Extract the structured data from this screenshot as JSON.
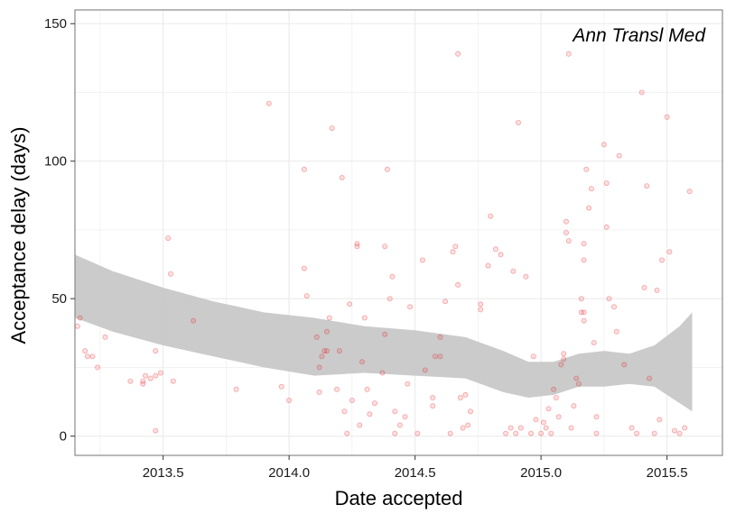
{
  "chart_data": {
    "type": "scatter",
    "annotation": "Ann Transl Med",
    "xlabel": "Date accepted",
    "ylabel": "Acceptance delay (days)",
    "xlim": [
      2013.15,
      2015.72
    ],
    "ylim": [
      -7,
      155
    ],
    "x_ticks": [
      2013.5,
      2014.0,
      2014.5,
      2015.0,
      2015.5
    ],
    "x_tick_labels": [
      "2013.5",
      "2014.0",
      "2014.5",
      "2015.0",
      "2015.5"
    ],
    "y_ticks": [
      0,
      50,
      100,
      150
    ],
    "y_tick_labels": [
      "0",
      "50",
      "100",
      "150"
    ],
    "grid": true,
    "colors": {
      "point": "#e8131a",
      "band": "#c8c8c8",
      "grid": "#ebebeb",
      "border": "#8a8a8a"
    },
    "confidence_band": {
      "x": [
        2013.15,
        2013.3,
        2013.5,
        2013.7,
        2013.9,
        2014.1,
        2014.3,
        2014.5,
        2014.7,
        2014.85,
        2014.95,
        2015.05,
        2015.15,
        2015.25,
        2015.35,
        2015.45,
        2015.55,
        2015.6
      ],
      "upper": [
        66,
        60,
        54,
        49,
        45,
        43,
        40,
        38.5,
        36,
        31,
        27,
        27,
        30,
        31,
        30,
        33,
        40,
        45
      ],
      "lower": [
        43,
        38,
        33,
        29,
        25,
        22,
        23,
        22,
        21,
        16,
        14,
        15,
        18,
        18,
        19,
        18,
        12,
        9
      ]
    },
    "points": [
      [
        2013.16,
        40
      ],
      [
        2013.17,
        43
      ],
      [
        2013.19,
        31
      ],
      [
        2013.2,
        29
      ],
      [
        2013.22,
        29
      ],
      [
        2013.24,
        25
      ],
      [
        2013.27,
        36
      ],
      [
        2013.37,
        20
      ],
      [
        2013.42,
        20
      ],
      [
        2013.42,
        19
      ],
      [
        2013.43,
        22
      ],
      [
        2013.45,
        21
      ],
      [
        2013.47,
        22
      ],
      [
        2013.47,
        31
      ],
      [
        2013.47,
        2
      ],
      [
        2013.49,
        23
      ],
      [
        2013.52,
        72
      ],
      [
        2013.53,
        59
      ],
      [
        2013.54,
        20
      ],
      [
        2013.62,
        42
      ],
      [
        2013.79,
        17
      ],
      [
        2013.92,
        121
      ],
      [
        2013.97,
        18
      ],
      [
        2014.0,
        13
      ],
      [
        2014.06,
        97
      ],
      [
        2014.06,
        61
      ],
      [
        2014.07,
        51
      ],
      [
        2014.11,
        36
      ],
      [
        2014.12,
        25
      ],
      [
        2014.12,
        16
      ],
      [
        2014.13,
        29
      ],
      [
        2014.14,
        31
      ],
      [
        2014.15,
        31
      ],
      [
        2014.15,
        38
      ],
      [
        2014.16,
        43
      ],
      [
        2014.17,
        112
      ],
      [
        2014.19,
        17
      ],
      [
        2014.2,
        31
      ],
      [
        2014.21,
        94
      ],
      [
        2014.22,
        9
      ],
      [
        2014.23,
        1
      ],
      [
        2014.24,
        48
      ],
      [
        2014.25,
        13
      ],
      [
        2014.27,
        70
      ],
      [
        2014.27,
        69
      ],
      [
        2014.28,
        4
      ],
      [
        2014.29,
        27
      ],
      [
        2014.3,
        43
      ],
      [
        2014.31,
        17
      ],
      [
        2014.32,
        8
      ],
      [
        2014.34,
        12
      ],
      [
        2014.37,
        23
      ],
      [
        2014.38,
        37
      ],
      [
        2014.38,
        69
      ],
      [
        2014.39,
        97
      ],
      [
        2014.4,
        50
      ],
      [
        2014.41,
        58
      ],
      [
        2014.42,
        9
      ],
      [
        2014.42,
        1
      ],
      [
        2014.44,
        4
      ],
      [
        2014.46,
        7
      ],
      [
        2014.47,
        19
      ],
      [
        2014.48,
        47
      ],
      [
        2014.51,
        1
      ],
      [
        2014.53,
        64
      ],
      [
        2014.54,
        24
      ],
      [
        2014.57,
        14
      ],
      [
        2014.57,
        11
      ],
      [
        2014.58,
        29
      ],
      [
        2014.6,
        36
      ],
      [
        2014.6,
        29
      ],
      [
        2014.62,
        49
      ],
      [
        2014.64,
        1
      ],
      [
        2014.65,
        67
      ],
      [
        2014.66,
        69
      ],
      [
        2014.67,
        139
      ],
      [
        2014.67,
        55
      ],
      [
        2014.68,
        14
      ],
      [
        2014.69,
        3
      ],
      [
        2014.7,
        15
      ],
      [
        2014.71,
        4
      ],
      [
        2014.72,
        9
      ],
      [
        2014.76,
        46
      ],
      [
        2014.76,
        48
      ],
      [
        2014.79,
        62
      ],
      [
        2014.8,
        80
      ],
      [
        2014.82,
        68
      ],
      [
        2014.84,
        66
      ],
      [
        2014.86,
        1
      ],
      [
        2014.88,
        3
      ],
      [
        2014.89,
        60
      ],
      [
        2014.9,
        1
      ],
      [
        2014.91,
        114
      ],
      [
        2014.92,
        3
      ],
      [
        2014.94,
        58
      ],
      [
        2014.96,
        1
      ],
      [
        2014.97,
        29
      ],
      [
        2014.98,
        6
      ],
      [
        2015.0,
        1
      ],
      [
        2015.01,
        5
      ],
      [
        2015.02,
        3
      ],
      [
        2015.03,
        10
      ],
      [
        2015.04,
        1
      ],
      [
        2015.05,
        17
      ],
      [
        2015.06,
        14
      ],
      [
        2015.07,
        7
      ],
      [
        2015.08,
        26
      ],
      [
        2015.09,
        30
      ],
      [
        2015.09,
        28
      ],
      [
        2015.1,
        78
      ],
      [
        2015.1,
        74
      ],
      [
        2015.11,
        71
      ],
      [
        2015.11,
        139
      ],
      [
        2015.12,
        3
      ],
      [
        2015.13,
        11
      ],
      [
        2015.14,
        21
      ],
      [
        2015.15,
        19
      ],
      [
        2015.16,
        50
      ],
      [
        2015.16,
        45
      ],
      [
        2015.17,
        45
      ],
      [
        2015.17,
        42
      ],
      [
        2015.17,
        70
      ],
      [
        2015.17,
        64
      ],
      [
        2015.18,
        97
      ],
      [
        2015.19,
        83
      ],
      [
        2015.2,
        90
      ],
      [
        2015.21,
        34
      ],
      [
        2015.22,
        7
      ],
      [
        2015.22,
        1
      ],
      [
        2015.25,
        106
      ],
      [
        2015.26,
        76
      ],
      [
        2015.26,
        92
      ],
      [
        2015.27,
        50
      ],
      [
        2015.29,
        47
      ],
      [
        2015.3,
        38
      ],
      [
        2015.31,
        102
      ],
      [
        2015.33,
        26
      ],
      [
        2015.36,
        3
      ],
      [
        2015.38,
        1
      ],
      [
        2015.4,
        125
      ],
      [
        2015.41,
        54
      ],
      [
        2015.42,
        91
      ],
      [
        2015.43,
        21
      ],
      [
        2015.45,
        1
      ],
      [
        2015.46,
        53
      ],
      [
        2015.47,
        6
      ],
      [
        2015.48,
        64
      ],
      [
        2015.5,
        116
      ],
      [
        2015.51,
        67
      ],
      [
        2015.53,
        2
      ],
      [
        2015.55,
        1
      ],
      [
        2015.57,
        3
      ],
      [
        2015.59,
        89
      ]
    ]
  }
}
